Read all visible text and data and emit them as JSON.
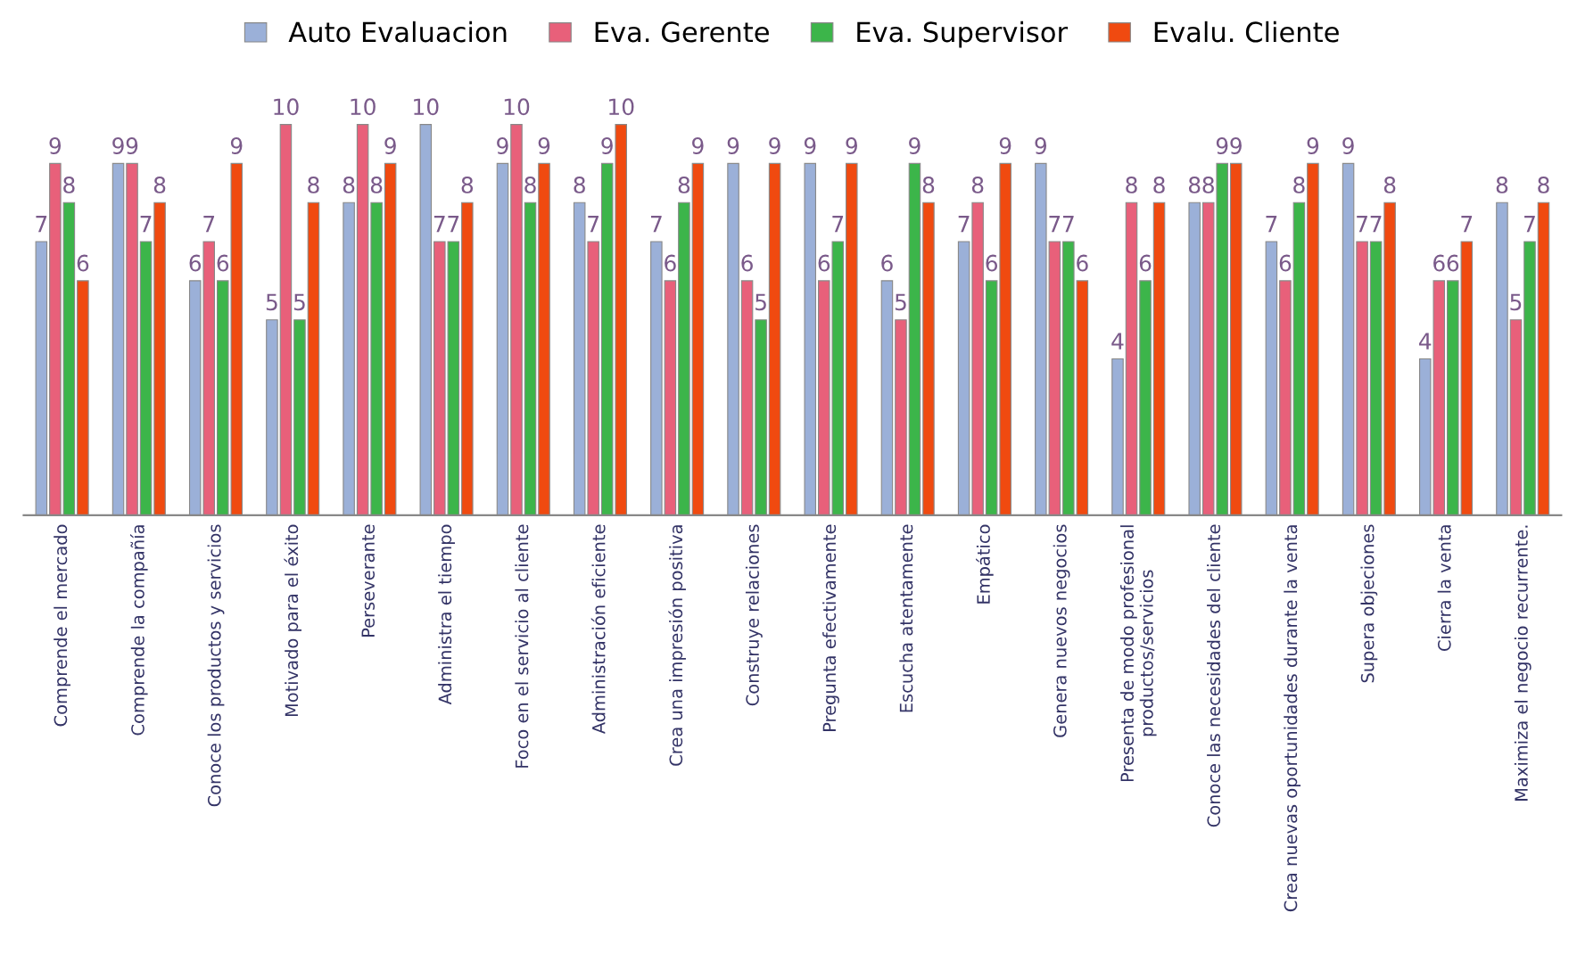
{
  "chart_data": {
    "type": "bar",
    "categories": [
      "Comprende el mercado",
      "Comprende la compañía",
      "Conoce los productos y servicios",
      "Motivado para el éxito",
      "Perseverante",
      "Administra el tiempo",
      "Foco en el servicio al cliente",
      "Administración eficiente",
      "Crea una impresión positiva",
      "Construye relaciones",
      "Pregunta efectivamente",
      "Escucha atentamente",
      "Empático",
      "Genera nuevos negocios",
      "Presenta de modo profesional\nproductos/servicios",
      "Conoce las necesidades del cliente",
      "Crea nuevas oportunidades durante la venta",
      "Supera objeciones",
      "Cierra la venta",
      "Maximiza el negocio recurrente."
    ],
    "series": [
      {
        "name": "Auto Evaluacion",
        "color": "#9bb0d8",
        "values": [
          7,
          9,
          6,
          5,
          8,
          10,
          9,
          8,
          7,
          9,
          9,
          6,
          7,
          9,
          4,
          8,
          7,
          9,
          4,
          8
        ]
      },
      {
        "name": "Eva. Gerente",
        "color": "#e8607a",
        "values": [
          9,
          9,
          7,
          10,
          10,
          7,
          10,
          7,
          6,
          6,
          6,
          5,
          8,
          7,
          8,
          8,
          6,
          7,
          6,
          5
        ]
      },
      {
        "name": "Eva. Supervisor",
        "color": "#3cb54a",
        "values": [
          8,
          7,
          6,
          5,
          8,
          7,
          8,
          9,
          8,
          5,
          7,
          9,
          6,
          7,
          6,
          9,
          8,
          7,
          6,
          7
        ]
      },
      {
        "name": "Evalu. Cliente",
        "color": "#f04a10",
        "values": [
          6,
          8,
          9,
          8,
          9,
          8,
          9,
          10,
          9,
          9,
          9,
          8,
          9,
          6,
          8,
          9,
          9,
          8,
          7,
          8
        ]
      }
    ],
    "data_labels": true,
    "legend": "top",
    "grid": false
  }
}
